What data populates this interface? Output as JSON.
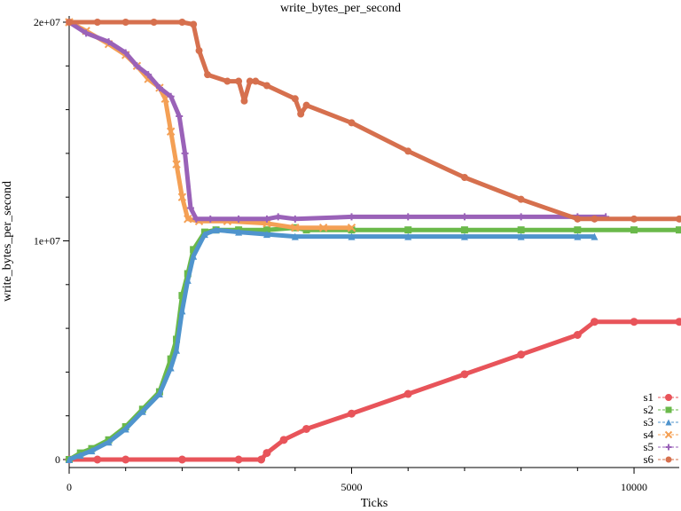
{
  "chart_data": {
    "type": "line",
    "title": "write_bytes_per_second",
    "xlabel": "Ticks",
    "ylabel": "write_bytes_per_second",
    "xlim": [
      0,
      10800
    ],
    "ylim": [
      0,
      20000000
    ],
    "x_ticks": [
      {
        "value": 0,
        "label": "0"
      },
      {
        "value": 5000,
        "label": "5000"
      },
      {
        "value": 10000,
        "label": "10000"
      }
    ],
    "x_minor_ticks": [
      1000,
      2000,
      3000,
      4000,
      6000,
      7000,
      8000,
      9000
    ],
    "y_ticks": [
      {
        "value": 0,
        "label": "0"
      },
      {
        "value": 10000000,
        "label": "1e+07"
      },
      {
        "value": 20000000,
        "label": "2e+07"
      }
    ],
    "y_minor_ticks": [
      2000000,
      4000000,
      6000000,
      8000000,
      12000000,
      14000000,
      16000000,
      18000000
    ],
    "legend_position": "bottom-right",
    "series": [
      {
        "name": "s1",
        "color": "#e8545a",
        "marker": "circle",
        "points": [
          [
            0,
            0
          ],
          [
            500,
            0
          ],
          [
            1000,
            0
          ],
          [
            2000,
            0
          ],
          [
            3000,
            0
          ],
          [
            3400,
            0
          ],
          [
            3500,
            300000
          ],
          [
            3800,
            900000
          ],
          [
            4200,
            1400000
          ],
          [
            5000,
            2100000
          ],
          [
            6000,
            3000000
          ],
          [
            7000,
            3900000
          ],
          [
            8000,
            4800000
          ],
          [
            9000,
            5700000
          ],
          [
            9300,
            6300000
          ],
          [
            10000,
            6300000
          ],
          [
            10800,
            6300000
          ]
        ]
      },
      {
        "name": "s2",
        "color": "#6ab94a",
        "marker": "square",
        "points": [
          [
            0,
            0
          ],
          [
            200,
            300000
          ],
          [
            400,
            500000
          ],
          [
            700,
            900000
          ],
          [
            1000,
            1500000
          ],
          [
            1300,
            2300000
          ],
          [
            1600,
            3100000
          ],
          [
            1800,
            4600000
          ],
          [
            1900,
            5500000
          ],
          [
            2000,
            7500000
          ],
          [
            2100,
            8500000
          ],
          [
            2200,
            9600000
          ],
          [
            2400,
            10400000
          ],
          [
            2600,
            10500000
          ],
          [
            3000,
            10500000
          ],
          [
            3500,
            10500000
          ],
          [
            4000,
            10600000
          ],
          [
            4200,
            10500000
          ],
          [
            5000,
            10500000
          ],
          [
            6000,
            10500000
          ],
          [
            7000,
            10500000
          ],
          [
            8000,
            10500000
          ],
          [
            9000,
            10500000
          ],
          [
            10000,
            10500000
          ],
          [
            10800,
            10500000
          ]
        ]
      },
      {
        "name": "s3",
        "color": "#4f94cd",
        "marker": "triangle",
        "points": [
          [
            0,
            0
          ],
          [
            200,
            200000
          ],
          [
            400,
            400000
          ],
          [
            700,
            800000
          ],
          [
            1000,
            1400000
          ],
          [
            1300,
            2200000
          ],
          [
            1600,
            3000000
          ],
          [
            1800,
            4200000
          ],
          [
            1900,
            5000000
          ],
          [
            2000,
            6800000
          ],
          [
            2100,
            8200000
          ],
          [
            2200,
            9300000
          ],
          [
            2400,
            10300000
          ],
          [
            2600,
            10500000
          ],
          [
            3000,
            10400000
          ],
          [
            3500,
            10300000
          ],
          [
            4000,
            10200000
          ],
          [
            5000,
            10200000
          ],
          [
            6000,
            10200000
          ],
          [
            7000,
            10200000
          ],
          [
            8000,
            10200000
          ],
          [
            9000,
            10200000
          ],
          [
            9300,
            10200000
          ]
        ]
      },
      {
        "name": "s4",
        "color": "#f4a055",
        "marker": "cross",
        "points": [
          [
            0,
            20000000
          ],
          [
            300,
            19600000
          ],
          [
            700,
            19000000
          ],
          [
            1000,
            18500000
          ],
          [
            1200,
            18000000
          ],
          [
            1400,
            17400000
          ],
          [
            1600,
            17000000
          ],
          [
            1700,
            16500000
          ],
          [
            1800,
            15000000
          ],
          [
            1900,
            13500000
          ],
          [
            2000,
            12000000
          ],
          [
            2100,
            11000000
          ],
          [
            2300,
            10900000
          ],
          [
            2800,
            10900000
          ],
          [
            3500,
            10800000
          ],
          [
            4000,
            10600000
          ],
          [
            4500,
            10600000
          ],
          [
            5000,
            10600000
          ]
        ]
      },
      {
        "name": "s5",
        "color": "#9a62b8",
        "marker": "plus",
        "points": [
          [
            0,
            20000000
          ],
          [
            300,
            19500000
          ],
          [
            700,
            19100000
          ],
          [
            1000,
            18600000
          ],
          [
            1200,
            18000000
          ],
          [
            1400,
            17600000
          ],
          [
            1600,
            17000000
          ],
          [
            1800,
            16600000
          ],
          [
            1950,
            15700000
          ],
          [
            2050,
            14000000
          ],
          [
            2150,
            11500000
          ],
          [
            2250,
            11000000
          ],
          [
            2500,
            11000000
          ],
          [
            3000,
            11000000
          ],
          [
            3500,
            11000000
          ],
          [
            3700,
            11100000
          ],
          [
            4000,
            11000000
          ],
          [
            5000,
            11100000
          ],
          [
            6000,
            11100000
          ],
          [
            7000,
            11100000
          ],
          [
            8000,
            11100000
          ],
          [
            9000,
            11100000
          ],
          [
            9500,
            11100000
          ]
        ]
      },
      {
        "name": "s6",
        "color": "#d6704e",
        "marker": "filled-circle",
        "points": [
          [
            0,
            20000000
          ],
          [
            500,
            20000000
          ],
          [
            1000,
            20000000
          ],
          [
            1500,
            20000000
          ],
          [
            2000,
            20000000
          ],
          [
            2200,
            19900000
          ],
          [
            2300,
            18700000
          ],
          [
            2450,
            17600000
          ],
          [
            2800,
            17300000
          ],
          [
            3000,
            17300000
          ],
          [
            3100,
            16400000
          ],
          [
            3200,
            17300000
          ],
          [
            3300,
            17300000
          ],
          [
            3500,
            17100000
          ],
          [
            4000,
            16500000
          ],
          [
            4100,
            15800000
          ],
          [
            4200,
            16200000
          ],
          [
            5000,
            15400000
          ],
          [
            6000,
            14100000
          ],
          [
            7000,
            12900000
          ],
          [
            8000,
            11900000
          ],
          [
            9000,
            11000000
          ],
          [
            9300,
            11000000
          ],
          [
            10000,
            11000000
          ],
          [
            10800,
            11000000
          ]
        ]
      }
    ]
  }
}
